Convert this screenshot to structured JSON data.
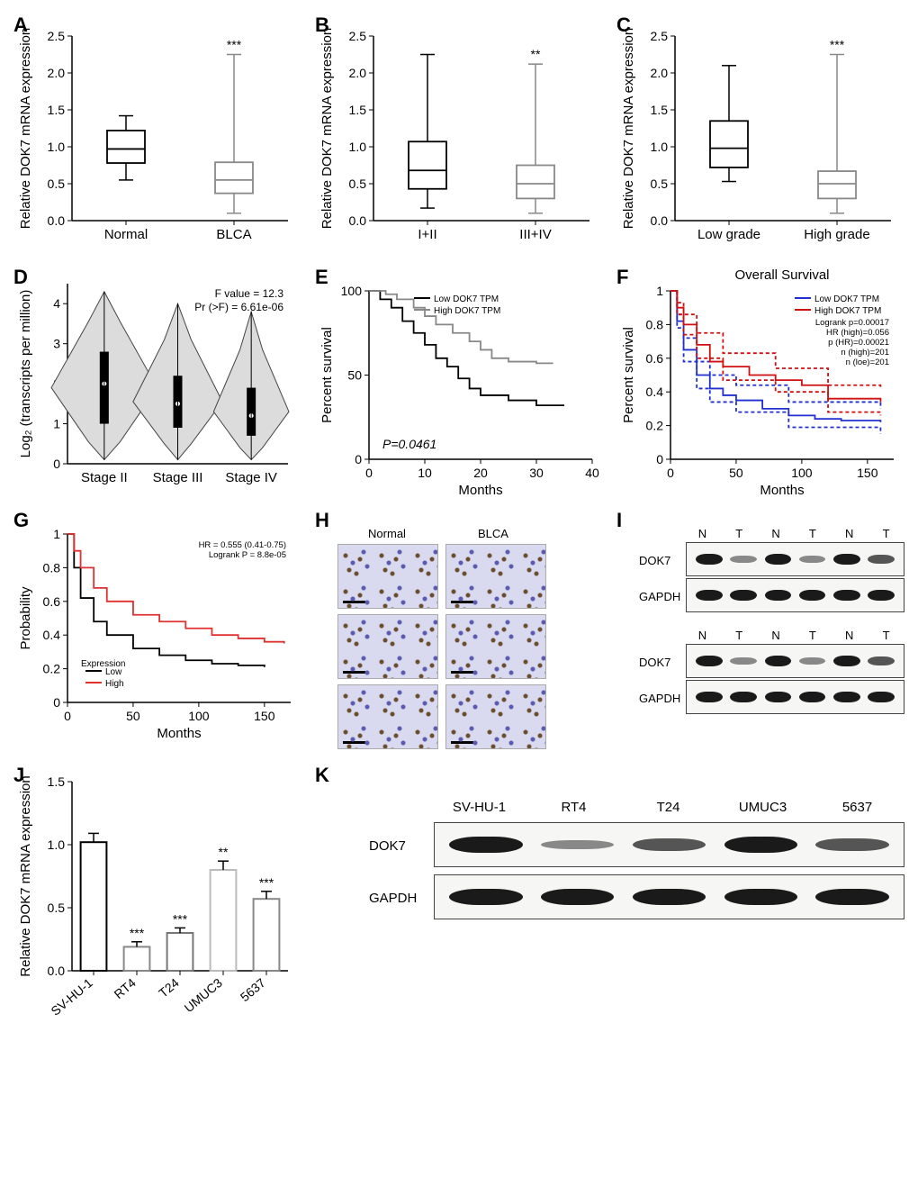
{
  "panels": {
    "A": {
      "label": "A",
      "type": "boxplot",
      "ylabel": "Relative DOK7 mRNA expression",
      "ylim": [
        0,
        2.5
      ],
      "ytick_step": 0.5,
      "categories": [
        "Normal",
        "BLCA"
      ],
      "significance": "***",
      "boxes": [
        {
          "q1": 0.78,
          "med": 0.97,
          "q3": 1.22,
          "lo": 0.55,
          "hi": 1.42,
          "color": "#000000"
        },
        {
          "q1": 0.37,
          "med": 0.55,
          "q3": 0.79,
          "lo": 0.1,
          "hi": 2.25,
          "color": "#888888"
        }
      ],
      "background": "#ffffff",
      "label_fontsize": 15
    },
    "B": {
      "label": "B",
      "type": "boxplot",
      "ylabel": "Relative DOK7 mRNA expression",
      "ylim": [
        0,
        2.5
      ],
      "ytick_step": 0.5,
      "categories": [
        "I+II",
        "III+IV"
      ],
      "significance": "**",
      "boxes": [
        {
          "q1": 0.43,
          "med": 0.68,
          "q3": 1.07,
          "lo": 0.17,
          "hi": 2.25,
          "color": "#000000"
        },
        {
          "q1": 0.3,
          "med": 0.5,
          "q3": 0.75,
          "lo": 0.1,
          "hi": 2.12,
          "color": "#888888"
        }
      ]
    },
    "C": {
      "label": "C",
      "type": "boxplot",
      "ylabel": "Relative DOK7 mRNA expression",
      "ylim": [
        0,
        2.5
      ],
      "ytick_step": 0.5,
      "categories": [
        "Low grade",
        "High grade"
      ],
      "significance": "***",
      "boxes": [
        {
          "q1": 0.72,
          "med": 0.98,
          "q3": 1.35,
          "lo": 0.53,
          "hi": 2.1,
          "color": "#000000"
        },
        {
          "q1": 0.3,
          "med": 0.5,
          "q3": 0.67,
          "lo": 0.1,
          "hi": 2.25,
          "color": "#888888"
        }
      ]
    },
    "D": {
      "label": "D",
      "type": "violin",
      "ylabel": "Log₂ (transcripts per million)",
      "ylim": [
        0,
        4.5
      ],
      "yticks": [
        0,
        1,
        2,
        3,
        4
      ],
      "categories": [
        "Stage II",
        "Stage III",
        "Stage IV"
      ],
      "stats": [
        "F value = 12.3",
        "Pr (>F) = 6.61e-06"
      ],
      "violins": [
        {
          "q1": 1.0,
          "med": 2.0,
          "q3": 2.8,
          "lo": 0.1,
          "hi": 4.3,
          "maxw": 0.45
        },
        {
          "q1": 0.9,
          "med": 1.5,
          "q3": 2.2,
          "lo": 0.1,
          "hi": 4.0,
          "maxw": 0.38
        },
        {
          "q1": 0.7,
          "med": 1.2,
          "q3": 1.9,
          "lo": 0.1,
          "hi": 3.8,
          "maxw": 0.32
        }
      ],
      "fill": "#dcdcdc",
      "stroke": "#444444"
    },
    "E": {
      "label": "E",
      "type": "km",
      "ylabel": "Percent survival",
      "xlabel": "Months",
      "xlim": [
        0,
        40
      ],
      "xtick_step": 10,
      "ylim": [
        0,
        100
      ],
      "ytick_step": 50,
      "yticks": [
        0,
        50,
        100
      ],
      "legend": [
        {
          "label": "Low DOK7 TPM",
          "color": "#000000"
        },
        {
          "label": "High DOK7 TPM",
          "color": "#888888"
        }
      ],
      "pvalue": "P=0.0461",
      "pvalue_style": "italic-P",
      "series": [
        {
          "color": "#000000",
          "points": [
            [
              0,
              100
            ],
            [
              2,
              95
            ],
            [
              4,
              90
            ],
            [
              6,
              82
            ],
            [
              8,
              75
            ],
            [
              10,
              68
            ],
            [
              12,
              60
            ],
            [
              14,
              55
            ],
            [
              16,
              48
            ],
            [
              18,
              42
            ],
            [
              20,
              38
            ],
            [
              25,
              35
            ],
            [
              30,
              32
            ],
            [
              35,
              32
            ]
          ]
        },
        {
          "color": "#888888",
          "points": [
            [
              0,
              100
            ],
            [
              3,
              98
            ],
            [
              5,
              95
            ],
            [
              8,
              90
            ],
            [
              10,
              85
            ],
            [
              12,
              80
            ],
            [
              15,
              75
            ],
            [
              18,
              70
            ],
            [
              20,
              65
            ],
            [
              22,
              60
            ],
            [
              25,
              58
            ],
            [
              30,
              57
            ],
            [
              33,
              57
            ]
          ]
        }
      ]
    },
    "F": {
      "label": "F",
      "type": "km",
      "title": "Overall Survival",
      "ylabel": "Percent survival",
      "xlabel": "Months",
      "xlim": [
        0,
        170
      ],
      "xtick_step": 50,
      "ylim": [
        0,
        1.0
      ],
      "ytick_step": 0.2,
      "legend": [
        {
          "label": "Low DOK7 TPM",
          "color": "#2030d0"
        },
        {
          "label": "High DOK7 TPM",
          "color": "#d01010"
        }
      ],
      "stats": [
        "Logrank p=0.00017",
        "HR (high)=0.056",
        "p (HR)=0.00021",
        "n (high)=201",
        "n (loe)=201"
      ],
      "series": [
        {
          "color": "#2030d0",
          "dashed": false,
          "points": [
            [
              0,
              1.0
            ],
            [
              5,
              0.82
            ],
            [
              10,
              0.65
            ],
            [
              20,
              0.5
            ],
            [
              30,
              0.42
            ],
            [
              40,
              0.38
            ],
            [
              50,
              0.35
            ],
            [
              70,
              0.3
            ],
            [
              90,
              0.26
            ],
            [
              110,
              0.24
            ],
            [
              130,
              0.23
            ],
            [
              160,
              0.22
            ]
          ]
        },
        {
          "color": "#2030d0",
          "dashed": true,
          "points": [
            [
              0,
              1.0
            ],
            [
              5,
              0.86
            ],
            [
              10,
              0.72
            ],
            [
              20,
              0.58
            ],
            [
              30,
              0.5
            ],
            [
              50,
              0.44
            ],
            [
              90,
              0.34
            ],
            [
              160,
              0.3
            ]
          ]
        },
        {
          "color": "#2030d0",
          "dashed": true,
          "points": [
            [
              0,
              1.0
            ],
            [
              5,
              0.78
            ],
            [
              10,
              0.58
            ],
            [
              20,
              0.42
            ],
            [
              30,
              0.34
            ],
            [
              50,
              0.28
            ],
            [
              90,
              0.19
            ],
            [
              160,
              0.15
            ]
          ]
        },
        {
          "color": "#d01010",
          "dashed": false,
          "points": [
            [
              0,
              1.0
            ],
            [
              5,
              0.9
            ],
            [
              10,
              0.8
            ],
            [
              20,
              0.68
            ],
            [
              30,
              0.58
            ],
            [
              40,
              0.55
            ],
            [
              60,
              0.5
            ],
            [
              80,
              0.47
            ],
            [
              100,
              0.44
            ],
            [
              120,
              0.36
            ],
            [
              160,
              0.34
            ]
          ]
        },
        {
          "color": "#d01010",
          "dashed": true,
          "points": [
            [
              0,
              1.0
            ],
            [
              5,
              0.93
            ],
            [
              10,
              0.86
            ],
            [
              20,
              0.75
            ],
            [
              40,
              0.63
            ],
            [
              80,
              0.54
            ],
            [
              120,
              0.44
            ],
            [
              160,
              0.42
            ]
          ]
        },
        {
          "color": "#d01010",
          "dashed": true,
          "points": [
            [
              0,
              1.0
            ],
            [
              5,
              0.86
            ],
            [
              10,
              0.74
            ],
            [
              20,
              0.6
            ],
            [
              40,
              0.47
            ],
            [
              80,
              0.4
            ],
            [
              120,
              0.28
            ],
            [
              160,
              0.26
            ]
          ]
        }
      ]
    },
    "G": {
      "label": "G",
      "type": "km",
      "ylabel": "Probability",
      "xlabel": "Months",
      "xlim": [
        0,
        170
      ],
      "xtick_step": 50,
      "ylim": [
        0,
        1.0
      ],
      "ytick_step": 0.2,
      "legend_title": "Expression",
      "legend": [
        {
          "label": "Low",
          "color": "#000000"
        },
        {
          "label": "High",
          "color": "#e03030"
        }
      ],
      "stats": [
        "HR = 0.555 (0.41-0.75)",
        "Logrank P = 8.8e-05"
      ],
      "series": [
        {
          "color": "#000000",
          "points": [
            [
              0,
              1.0
            ],
            [
              5,
              0.8
            ],
            [
              10,
              0.62
            ],
            [
              20,
              0.48
            ],
            [
              30,
              0.4
            ],
            [
              50,
              0.32
            ],
            [
              70,
              0.28
            ],
            [
              90,
              0.25
            ],
            [
              110,
              0.23
            ],
            [
              130,
              0.22
            ],
            [
              150,
              0.21
            ]
          ]
        },
        {
          "color": "#e03030",
          "points": [
            [
              0,
              1.0
            ],
            [
              5,
              0.9
            ],
            [
              10,
              0.8
            ],
            [
              20,
              0.68
            ],
            [
              30,
              0.6
            ],
            [
              50,
              0.52
            ],
            [
              70,
              0.48
            ],
            [
              90,
              0.44
            ],
            [
              110,
              0.4
            ],
            [
              130,
              0.38
            ],
            [
              150,
              0.36
            ],
            [
              165,
              0.35
            ]
          ]
        }
      ]
    },
    "H": {
      "label": "H",
      "type": "ihc",
      "headers": [
        "Normal",
        "BLCA"
      ],
      "rows": 3
    },
    "I": {
      "label": "I",
      "type": "western",
      "row_labels": [
        "DOK7",
        "GAPDH"
      ],
      "lane_headers": [
        "N",
        "T",
        "N",
        "T",
        "N",
        "T"
      ],
      "sets": 2,
      "intensity_patterns": [
        [
          "strong",
          "faint",
          "strong",
          "faint",
          "strong",
          "med"
        ],
        [
          "strong",
          "strong",
          "strong",
          "strong",
          "strong",
          "strong"
        ]
      ]
    },
    "J": {
      "label": "J",
      "type": "bar",
      "ylabel": "Relative DOK7 mRNA expression",
      "ylim": [
        0,
        1.5
      ],
      "ytick_step": 0.5,
      "categories": [
        "SV-HU-1",
        "RT4",
        "T24",
        "UMUC3",
        "5637"
      ],
      "values": [
        1.02,
        0.19,
        0.3,
        0.8,
        0.57
      ],
      "errors": [
        0.07,
        0.04,
        0.04,
        0.07,
        0.06
      ],
      "significances": [
        "",
        "***",
        "***",
        "**",
        "***"
      ],
      "bar_colors": [
        "#000000",
        "#888888",
        "#777777",
        "#bbbbbb",
        "#888888"
      ],
      "fill": "#ffffff"
    },
    "K": {
      "label": "K",
      "type": "western-single",
      "lane_headers": [
        "SV-HU-1",
        "RT4",
        "T24",
        "UMUC3",
        "5637"
      ],
      "row_labels": [
        "DOK7",
        "GAPDH"
      ],
      "intensities": [
        [
          "strong",
          "faint",
          "med",
          "strong",
          "med"
        ],
        [
          "strong",
          "strong",
          "strong",
          "strong",
          "strong"
        ]
      ]
    }
  }
}
